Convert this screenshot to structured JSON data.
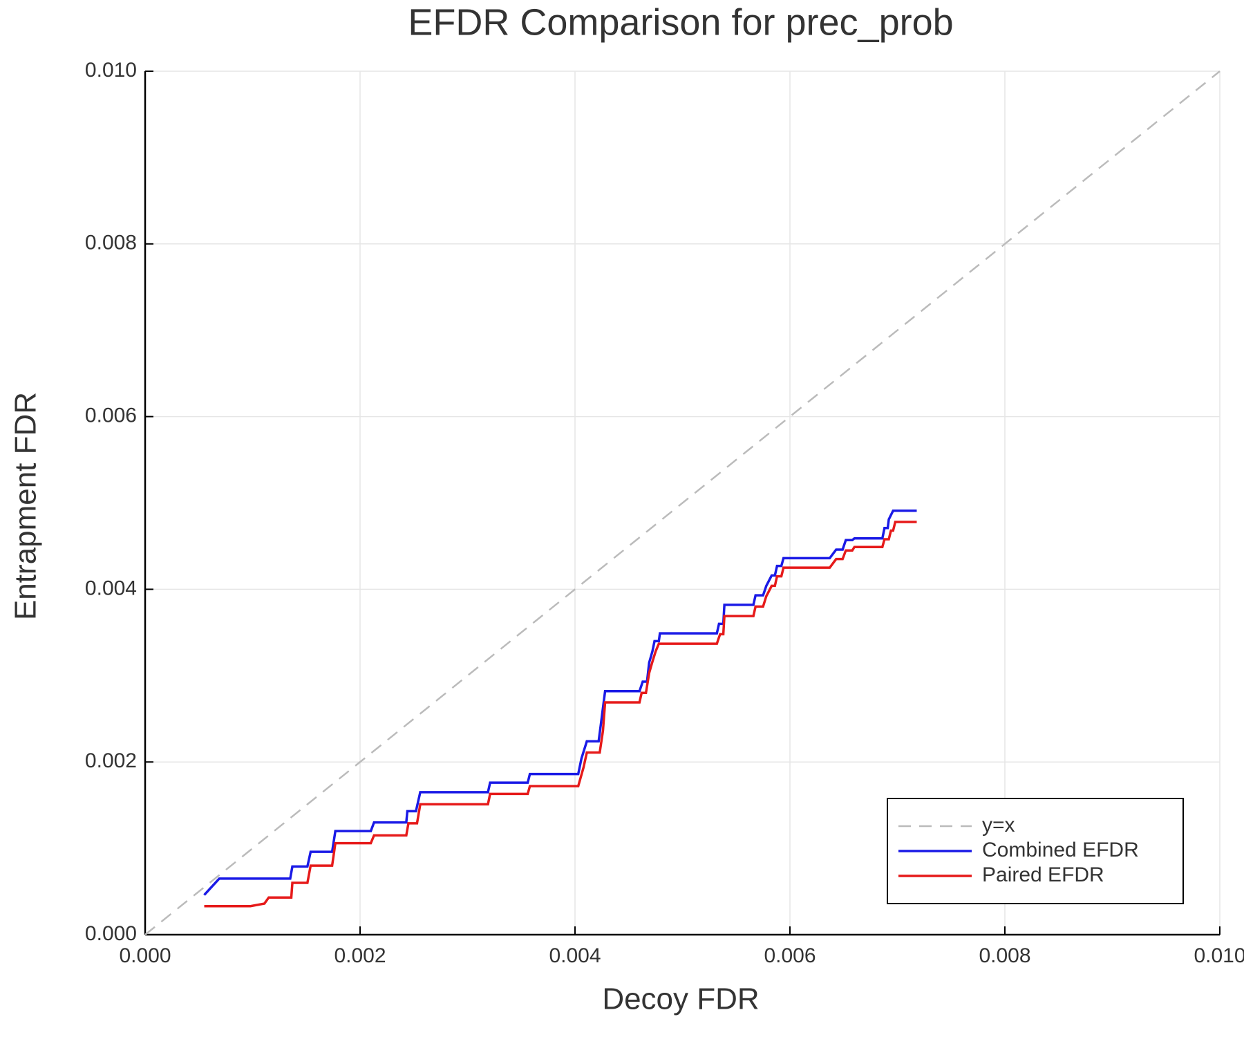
{
  "chart_data": {
    "type": "line",
    "title": "EFDR Comparison for prec_prob",
    "x_label": "Decoy FDR",
    "y_label": "Entrapment FDR",
    "xlim": [
      0,
      0.01
    ],
    "ylim": [
      0,
      0.01
    ],
    "xticks": [
      {
        "value": 0,
        "label": "0.000"
      },
      {
        "value": 0.002,
        "label": "0.002"
      },
      {
        "value": 0.004,
        "label": "0.004"
      },
      {
        "value": 0.006,
        "label": "0.006"
      },
      {
        "value": 0.008,
        "label": "0.008"
      },
      {
        "value": 0.01,
        "label": "0.010"
      }
    ],
    "yticks": [
      {
        "value": 0,
        "label": "0.000"
      },
      {
        "value": 0.002,
        "label": "0.002"
      },
      {
        "value": 0.004,
        "label": "0.004"
      },
      {
        "value": 0.006,
        "label": "0.006"
      },
      {
        "value": 0.008,
        "label": "0.008"
      },
      {
        "value": 0.01,
        "label": "0.010"
      }
    ],
    "grid": true,
    "legend": "lower right",
    "series": [
      {
        "name": "y=x",
        "color": "#bbbbbb",
        "dashed": true,
        "x": [
          0,
          0.01
        ],
        "values": [
          0,
          0.01
        ]
      },
      {
        "name": "Combined EFDR",
        "color": "#1a1ae6",
        "dashed": false,
        "x": [
          0.00055,
          0.00069,
          0.00135,
          0.00137,
          0.00151,
          0.00154,
          0.00174,
          0.00177,
          0.0021,
          0.00213,
          0.00243,
          0.00244,
          0.00252,
          0.00256,
          0.00319,
          0.00321,
          0.00356,
          0.00358,
          0.00403,
          0.00406,
          0.00411,
          0.00422,
          0.00424,
          0.00428,
          0.0046,
          0.00463,
          0.00467,
          0.00469,
          0.00472,
          0.00474,
          0.00478,
          0.00479,
          0.00532,
          0.00534,
          0.00538,
          0.00539,
          0.00566,
          0.00568,
          0.00575,
          0.00578,
          0.00583,
          0.00586,
          0.00588,
          0.00592,
          0.00594,
          0.00637,
          0.00643,
          0.00649,
          0.00652,
          0.00658,
          0.0066,
          0.00686,
          0.00688,
          0.00691,
          0.00692,
          0.00696,
          0.00718
        ],
        "values": [
          0.00046,
          0.00065,
          0.00065,
          0.00079,
          0.00079,
          0.00096,
          0.00096,
          0.0012,
          0.0012,
          0.0013,
          0.0013,
          0.00143,
          0.00143,
          0.00165,
          0.00165,
          0.00176,
          0.00176,
          0.00186,
          0.00186,
          0.00204,
          0.00224,
          0.00224,
          0.00243,
          0.00282,
          0.00282,
          0.00293,
          0.00293,
          0.00315,
          0.00328,
          0.0034,
          0.0034,
          0.00349,
          0.00349,
          0.0036,
          0.0036,
          0.00382,
          0.00382,
          0.00393,
          0.00393,
          0.00404,
          0.00416,
          0.00416,
          0.00427,
          0.00427,
          0.00436,
          0.00436,
          0.00446,
          0.00446,
          0.00457,
          0.00457,
          0.00459,
          0.00459,
          0.00471,
          0.00471,
          0.00481,
          0.00491,
          0.00491
        ]
      },
      {
        "name": "Paired EFDR",
        "color": "#e61a1a",
        "dashed": false,
        "x": [
          0.00055,
          0.00098,
          0.00111,
          0.00115,
          0.00136,
          0.00137,
          0.00151,
          0.00154,
          0.00174,
          0.00177,
          0.0021,
          0.00213,
          0.00243,
          0.00245,
          0.00253,
          0.00256,
          0.00319,
          0.00321,
          0.00356,
          0.00358,
          0.00403,
          0.00408,
          0.00411,
          0.00423,
          0.00426,
          0.00428,
          0.0046,
          0.00462,
          0.00466,
          0.00469,
          0.00472,
          0.00475,
          0.00478,
          0.00532,
          0.00535,
          0.00538,
          0.00539,
          0.00566,
          0.00568,
          0.00575,
          0.00578,
          0.00583,
          0.00586,
          0.00588,
          0.00592,
          0.00594,
          0.00637,
          0.00643,
          0.00649,
          0.00652,
          0.00658,
          0.0066,
          0.00686,
          0.00688,
          0.00692,
          0.00694,
          0.00696,
          0.00698,
          0.00718
        ],
        "values": [
          0.00033,
          0.00033,
          0.00036,
          0.00043,
          0.00043,
          0.0006,
          0.0006,
          0.0008,
          0.0008,
          0.00106,
          0.00106,
          0.00115,
          0.00115,
          0.00129,
          0.00129,
          0.00151,
          0.00151,
          0.00163,
          0.00163,
          0.00172,
          0.00172,
          0.00194,
          0.00211,
          0.00211,
          0.00236,
          0.00269,
          0.00269,
          0.0028,
          0.0028,
          0.00303,
          0.00316,
          0.00328,
          0.00337,
          0.00337,
          0.00348,
          0.00348,
          0.00369,
          0.00369,
          0.0038,
          0.0038,
          0.00392,
          0.00404,
          0.00404,
          0.00415,
          0.00415,
          0.00425,
          0.00425,
          0.00435,
          0.00435,
          0.00445,
          0.00445,
          0.00449,
          0.00449,
          0.00458,
          0.00458,
          0.00468,
          0.00468,
          0.00478,
          0.00478
        ]
      }
    ]
  }
}
